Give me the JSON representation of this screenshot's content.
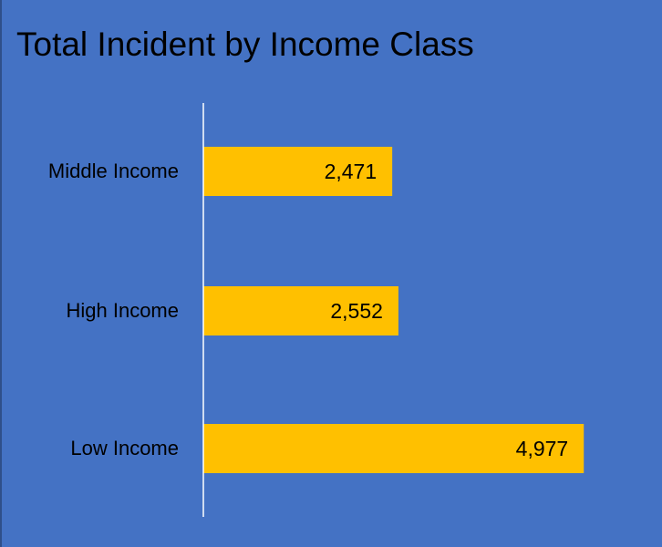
{
  "chart_data": {
    "type": "bar",
    "orientation": "horizontal",
    "title": "Total Incident by Income Class",
    "categories": [
      "Middle Income",
      "High Income",
      "Low Income"
    ],
    "values": [
      2471,
      2552,
      4977
    ],
    "value_labels": [
      "2,471",
      "2,552",
      "4,977"
    ],
    "xlim": [
      0,
      6000
    ],
    "grid": false,
    "legend": "none",
    "colors": {
      "background": "#4472C4",
      "bar": "#FFC000",
      "axis": "#FFFFFF",
      "text": "#000000"
    }
  }
}
